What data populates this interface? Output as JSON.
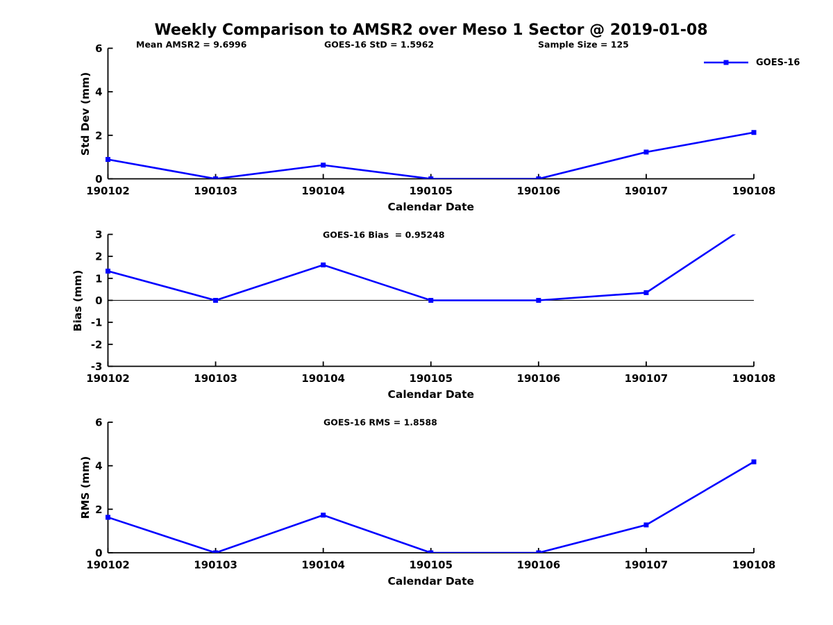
{
  "chart_data": {
    "type": "line",
    "title": "Weekly Comparison to AMSR2 over Meso 1 Sector @ 2019-01-08",
    "xlabel": "Calendar Date",
    "categories": [
      "190102",
      "190103",
      "190104",
      "190105",
      "190106",
      "190107",
      "190108"
    ],
    "series_name": "GOES-16",
    "line_color": "#0000FF",
    "marker": "square",
    "legend": {
      "label": "GOES-16",
      "position": "top-right"
    },
    "grid": false,
    "plots": [
      {
        "name": "std-dev",
        "ylabel": "Std Dev (mm)",
        "ylim": [
          0,
          6
        ],
        "yticks": [
          0,
          2,
          4,
          6
        ],
        "values": [
          0.89,
          0.0,
          0.63,
          0.0,
          0.0,
          1.23,
          2.13
        ],
        "zero_line": false,
        "annotations": [
          {
            "text": "Mean AMSR2 = 9.6996"
          },
          {
            "text": "GOES-16 StD = 1.5962"
          },
          {
            "text": "Sample Size = 125"
          }
        ]
      },
      {
        "name": "bias",
        "ylabel": "Bias (mm)",
        "ylim": [
          -3,
          3
        ],
        "yticks": [
          3,
          2,
          1,
          0,
          -1,
          -2,
          -3
        ],
        "values": [
          1.33,
          0.0,
          1.61,
          0.0,
          0.0,
          0.35,
          3.59
        ],
        "zero_line": true,
        "clipped_to_ylim": true,
        "annotations": [
          {
            "text": "GOES-16 Bias  = 0.95248"
          }
        ]
      },
      {
        "name": "rms",
        "ylabel": "RMS (mm)",
        "ylim": [
          0,
          6
        ],
        "yticks": [
          0,
          2,
          4,
          6
        ],
        "values": [
          1.63,
          0.0,
          1.73,
          0.0,
          0.0,
          1.28,
          4.18
        ],
        "zero_line": false,
        "annotations": [
          {
            "text": "GOES-16 RMS = 1.8588"
          }
        ]
      }
    ]
  }
}
